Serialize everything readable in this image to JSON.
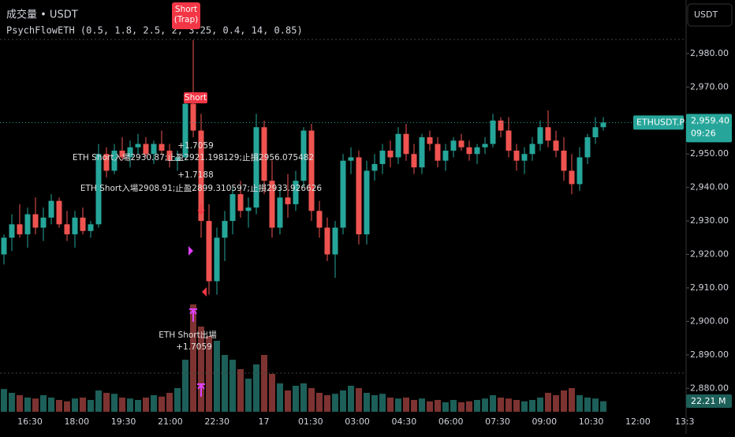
{
  "chart_data": {
    "type": "candlestick",
    "title": "成交量 • USDT",
    "subtitle": "PsychFlowETH (0.5, 1.8, 2.5, 2, 3.25, 0.4, 14, 0.85)",
    "currency_button": "USDT",
    "up_color": "#26a69a",
    "down_color": "#ef5350",
    "up_volume_color": "#1d5f59",
    "down_volume_color": "#7d3331",
    "ylim": [
      2873,
      2996
    ],
    "yticks": [
      {
        "value": 2880,
        "label": "2,880.00"
      },
      {
        "value": 2890,
        "label": "2,890.00"
      },
      {
        "value": 2900,
        "label": "2,900.00"
      },
      {
        "value": 2910,
        "label": "2,910.00"
      },
      {
        "value": 2920,
        "label": "2,920.00"
      },
      {
        "value": 2930,
        "label": "2,930.00"
      },
      {
        "value": 2940,
        "label": "2,940.00"
      },
      {
        "value": 2950,
        "label": "2,950.00"
      },
      {
        "value": 2960,
        "label": "2,960.00"
      },
      {
        "value": 2970,
        "label": "2,970.00"
      },
      {
        "value": 2980,
        "label": "2,980.00"
      }
    ],
    "xtick_labels": [
      "16:30",
      "18:00",
      "19:30",
      "21:00",
      "22:30",
      "17",
      "01:30",
      "03:00",
      "04:30",
      "06:00",
      "07:30",
      "09:00",
      "10:30",
      "12:00",
      "13:3"
    ],
    "open": [
      2920,
      2925,
      2929,
      2926,
      2932,
      2928,
      2931,
      2936,
      2929,
      2926,
      2931,
      2927,
      2929,
      2950,
      2945,
      2951,
      2949,
      2952,
      2953,
      2950,
      2953,
      2951,
      2948,
      2949,
      2965,
      2957,
      2930,
      2912,
      2925,
      2930,
      2938,
      2933,
      2934,
      2958,
      2942,
      2928,
      2937,
      2935,
      2942,
      2957,
      2933,
      2928,
      2920,
      2928,
      2948,
      2949,
      2926,
      2945,
      2947,
      2951,
      2949,
      2956,
      2950,
      2946,
      2955,
      2953,
      2948,
      2951,
      2954,
      2952,
      2950,
      2952,
      2953,
      2960,
      2957,
      2951,
      2948,
      2950,
      2953,
      2958,
      2954,
      2951,
      2945,
      2941,
      2949,
      2955,
      2958
    ],
    "high": [
      2926,
      2932,
      2935,
      2934,
      2937,
      2934,
      2938,
      2937,
      2933,
      2933,
      2934,
      2930,
      2953,
      2952,
      2953,
      2955,
      2954,
      2956,
      2955,
      2954,
      2957,
      2953,
      2951,
      2968,
      2984,
      2962,
      2935,
      2928,
      2933,
      2940,
      2942,
      2937,
      2962,
      2960,
      2948,
      2940,
      2944,
      2945,
      2958,
      2959,
      2936,
      2931,
      2930,
      2950,
      2952,
      2951,
      2948,
      2950,
      2953,
      2954,
      2958,
      2959,
      2953,
      2956,
      2957,
      2955,
      2953,
      2955,
      2956,
      2954,
      2953,
      2955,
      2962,
      2961,
      2961,
      2953,
      2952,
      2955,
      2960,
      2963,
      2957,
      2955,
      2950,
      2952,
      2956,
      2961,
      2961
    ],
    "low": [
      2917,
      2921,
      2925,
      2922,
      2926,
      2924,
      2929,
      2928,
      2924,
      2922,
      2926,
      2925,
      2928,
      2943,
      2944,
      2948,
      2946,
      2950,
      2949,
      2947,
      2950,
      2946,
      2945,
      2948,
      2955,
      2925,
      2908,
      2908,
      2918,
      2926,
      2931,
      2928,
      2932,
      2938,
      2925,
      2926,
      2931,
      2933,
      2940,
      2930,
      2925,
      2918,
      2913,
      2926,
      2944,
      2923,
      2923,
      2942,
      2944,
      2946,
      2947,
      2948,
      2944,
      2944,
      2951,
      2946,
      2945,
      2949,
      2951,
      2948,
      2947,
      2950,
      2952,
      2955,
      2949,
      2945,
      2944,
      2948,
      2951,
      2952,
      2949,
      2942,
      2938,
      2939,
      2947,
      2953,
      2957
    ],
    "close": [
      2925,
      2929,
      2926,
      2932,
      2928,
      2931,
      2936,
      2929,
      2926,
      2931,
      2927,
      2929,
      2950,
      2945,
      2951,
      2949,
      2952,
      2953,
      2950,
      2953,
      2951,
      2948,
      2949,
      2965,
      2957,
      2930,
      2912,
      2925,
      2930,
      2938,
      2933,
      2934,
      2958,
      2942,
      2928,
      2937,
      2935,
      2942,
      2957,
      2933,
      2928,
      2920,
      2928,
      2948,
      2949,
      2926,
      2945,
      2947,
      2951,
      2949,
      2956,
      2950,
      2946,
      2955,
      2953,
      2948,
      2951,
      2954,
      2952,
      2950,
      2952,
      2953,
      2960,
      2957,
      2951,
      2948,
      2950,
      2953,
      2958,
      2954,
      2951,
      2945,
      2941,
      2949,
      2955,
      2958,
      2959.4
    ],
    "volume": [
      48,
      40,
      35,
      30,
      28,
      35,
      30,
      25,
      22,
      28,
      30,
      25,
      45,
      40,
      38,
      30,
      28,
      25,
      30,
      35,
      32,
      40,
      50,
      110,
      227,
      180,
      160,
      150,
      120,
      110,
      90,
      70,
      100,
      120,
      80,
      60,
      45,
      55,
      60,
      50,
      40,
      35,
      38,
      45,
      55,
      50,
      40,
      35,
      38,
      30,
      28,
      30,
      25,
      28,
      22,
      25,
      20,
      25,
      20,
      22,
      25,
      28,
      35,
      30,
      28,
      25,
      22,
      25,
      30,
      40,
      35,
      45,
      50,
      35,
      30,
      28,
      22.21
    ],
    "current_price": {
      "symbol": "ETHUSDT.P",
      "value": 2959.4,
      "label": "2,959.40",
      "countdown": "09:26"
    },
    "volume_label": "22.21 M",
    "annotations": [
      "Short\n(Trap)",
      "+1.7059",
      "ETH Short入場2930.87;止盈2921.198129;止損2956.075482",
      "Short",
      "+1.7188",
      "ETH Short入場2908.91;止盈2899.310597;止損2933.926626",
      "ETH Short出場",
      "+1.7059"
    ]
  }
}
